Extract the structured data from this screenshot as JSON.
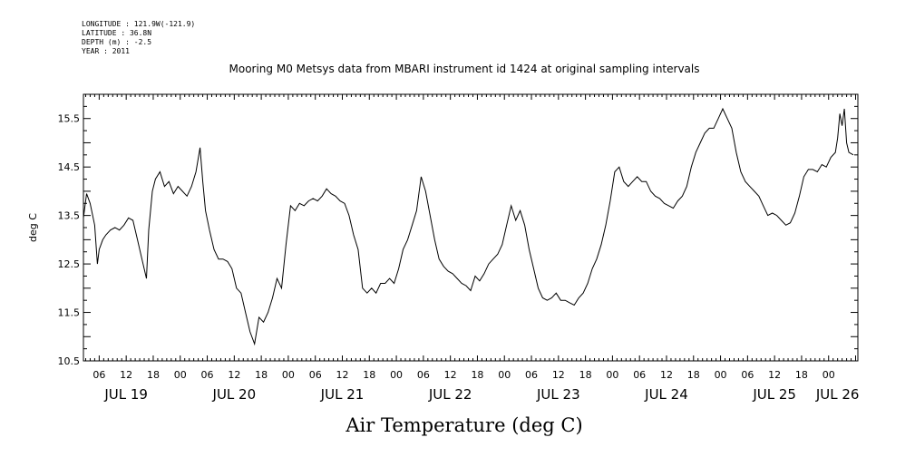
{
  "meta": {
    "longitude": "LONGITUDE : 121.9W(-121.9)",
    "latitude": "LATITUDE : 36.8N",
    "depth": "DEPTH (m) : -2.5",
    "year": "YEAR : 2011"
  },
  "chart_data": {
    "type": "line",
    "title": "Mooring M0 Metsys data from MBARI instrument id 1424 at original sampling intervals",
    "xlabel": "Air Temperature (deg C)",
    "ylabel": "deg C",
    "ylim": [
      10.5,
      16.0
    ],
    "y_tick_labels": [
      "10.5",
      "11.5",
      "12.5",
      "13.5",
      "14.5",
      "15.5"
    ],
    "y_tick_values": [
      10.5,
      11.5,
      12.5,
      13.5,
      14.5,
      15.5
    ],
    "x_unit": "hours since JUL 19 00:00 (2011)",
    "xlim": [
      2.5,
      174.5
    ],
    "x_hour_ticks": [
      {
        "h": 6,
        "label": "06"
      },
      {
        "h": 12,
        "label": "12"
      },
      {
        "h": 18,
        "label": "18"
      },
      {
        "h": 24,
        "label": "00"
      },
      {
        "h": 30,
        "label": "06"
      },
      {
        "h": 36,
        "label": "12"
      },
      {
        "h": 42,
        "label": "18"
      },
      {
        "h": 48,
        "label": "00"
      },
      {
        "h": 54,
        "label": "06"
      },
      {
        "h": 60,
        "label": "12"
      },
      {
        "h": 66,
        "label": "18"
      },
      {
        "h": 72,
        "label": "00"
      },
      {
        "h": 78,
        "label": "06"
      },
      {
        "h": 84,
        "label": "12"
      },
      {
        "h": 90,
        "label": "18"
      },
      {
        "h": 96,
        "label": "00"
      },
      {
        "h": 102,
        "label": "06"
      },
      {
        "h": 108,
        "label": "12"
      },
      {
        "h": 114,
        "label": "18"
      },
      {
        "h": 120,
        "label": "00"
      },
      {
        "h": 126,
        "label": "06"
      },
      {
        "h": 132,
        "label": "12"
      },
      {
        "h": 138,
        "label": "18"
      },
      {
        "h": 144,
        "label": "00"
      },
      {
        "h": 150,
        "label": "06"
      },
      {
        "h": 156,
        "label": "12"
      },
      {
        "h": 162,
        "label": "18"
      },
      {
        "h": 168,
        "label": "00"
      }
    ],
    "x_day_labels": [
      {
        "h": 12,
        "label": "JUL 19"
      },
      {
        "h": 36,
        "label": "JUL 20"
      },
      {
        "h": 60,
        "label": "JUL 21"
      },
      {
        "h": 84,
        "label": "JUL 22"
      },
      {
        "h": 108,
        "label": "JUL 23"
      },
      {
        "h": 132,
        "label": "JUL 24"
      },
      {
        "h": 156,
        "label": "JUL 25"
      },
      {
        "h": 170,
        "label": "JUL 26"
      }
    ],
    "series": [
      {
        "color": "#000000",
        "x": [
          2.5,
          3.2,
          4,
          5,
          5.6,
          6,
          6.8,
          7.5,
          8.5,
          9.5,
          10.5,
          11.5,
          12.5,
          13.5,
          14.5,
          15.5,
          16.5,
          17,
          17.8,
          18.5,
          19.5,
          20.5,
          21.5,
          22.5,
          23.5,
          24.5,
          25.5,
          26.5,
          27.5,
          28.4,
          29,
          29.6,
          30.5,
          31.5,
          32.5,
          33.5,
          34.5,
          35.5,
          36.5,
          37.5,
          38.5,
          39.5,
          40.5,
          41.5,
          42.5,
          43.5,
          44.5,
          45.5,
          46.5,
          47.5,
          48.5,
          49.5,
          50.5,
          51.5,
          52.5,
          53.5,
          54.5,
          55.5,
          56.5,
          57.5,
          58.5,
          59.5,
          60.5,
          61.5,
          62.5,
          63.5,
          64.5,
          65.5,
          66.5,
          67.5,
          68.5,
          69.5,
          70.5,
          71.5,
          72.5,
          73.5,
          74.5,
          75.5,
          76.5,
          77.5,
          78.5,
          79.5,
          80.5,
          81.5,
          82.5,
          83.5,
          84.5,
          85.5,
          86.5,
          87.5,
          88.5,
          89.5,
          90.5,
          91.5,
          92.5,
          93.5,
          94.5,
          95.5,
          96.5,
          97.5,
          98.5,
          99.5,
          100.5,
          101.5,
          102.5,
          103.5,
          104.5,
          105.5,
          106.5,
          107.5,
          108.5,
          109.5,
          110.5,
          111.5,
          112.5,
          113.5,
          114.5,
          115.5,
          116.5,
          117.5,
          118.5,
          119.5,
          120.5,
          121.5,
          122.5,
          123.5,
          124.5,
          125.5,
          126.5,
          127.5,
          128.5,
          129.5,
          130.5,
          131.5,
          132.5,
          133.5,
          134.5,
          135.5,
          136.5,
          137.5,
          138.5,
          139.5,
          140.5,
          141.5,
          142.5,
          143.5,
          144.5,
          145.5,
          146.5,
          147.5,
          148.5,
          149.5,
          150.5,
          151.5,
          152.5,
          153.5,
          154.5,
          155.5,
          156.5,
          157.5,
          158.5,
          159.5,
          160.5,
          161.5,
          162.5,
          163.5,
          164.5,
          165.5,
          166.5,
          167.5,
          168.5,
          169.5,
          170,
          170.5,
          171,
          171.5,
          172,
          172.5,
          173.5
        ],
        "y": [
          13.45,
          13.95,
          13.75,
          13.3,
          12.5,
          12.8,
          13.0,
          13.1,
          13.2,
          13.25,
          13.2,
          13.3,
          13.45,
          13.4,
          13.0,
          12.6,
          12.2,
          13.2,
          14.0,
          14.25,
          14.4,
          14.1,
          14.2,
          13.95,
          14.1,
          14.0,
          13.9,
          14.1,
          14.4,
          14.9,
          14.2,
          13.6,
          13.2,
          12.8,
          12.6,
          12.6,
          12.55,
          12.4,
          12.0,
          11.9,
          11.5,
          11.1,
          10.85,
          11.4,
          11.3,
          11.5,
          11.8,
          12.2,
          12.0,
          12.9,
          13.7,
          13.6,
          13.75,
          13.7,
          13.8,
          13.85,
          13.8,
          13.9,
          14.05,
          13.95,
          13.9,
          13.8,
          13.75,
          13.5,
          13.1,
          12.8,
          12.0,
          11.9,
          12.0,
          11.9,
          12.1,
          12.1,
          12.2,
          12.1,
          12.4,
          12.8,
          13.0,
          13.3,
          13.6,
          14.3,
          14.0,
          13.5,
          13.0,
          12.6,
          12.45,
          12.35,
          12.3,
          12.2,
          12.1,
          12.05,
          11.95,
          12.25,
          12.15,
          12.3,
          12.5,
          12.6,
          12.7,
          12.9,
          13.3,
          13.7,
          13.4,
          13.6,
          13.3,
          12.8,
          12.4,
          12.0,
          11.8,
          11.75,
          11.8,
          11.9,
          11.75,
          11.75,
          11.7,
          11.65,
          11.8,
          11.9,
          12.1,
          12.4,
          12.6,
          12.9,
          13.3,
          13.8,
          14.4,
          14.5,
          14.2,
          14.1,
          14.2,
          14.3,
          14.2,
          14.2,
          14.0,
          13.9,
          13.85,
          13.75,
          13.7,
          13.65,
          13.8,
          13.9,
          14.1,
          14.5,
          14.8,
          15.0,
          15.2,
          15.3,
          15.3,
          15.5,
          15.7,
          15.5,
          15.3,
          14.8,
          14.4,
          14.2,
          14.1,
          14.0,
          13.9,
          13.7,
          13.5,
          13.55,
          13.5,
          13.4,
          13.3,
          13.35,
          13.55,
          13.9,
          14.3,
          14.45,
          14.45,
          14.4,
          14.55,
          14.5,
          14.7,
          14.8,
          15.1,
          15.6,
          15.35,
          15.7,
          15.0,
          14.8,
          14.75
        ]
      }
    ]
  }
}
